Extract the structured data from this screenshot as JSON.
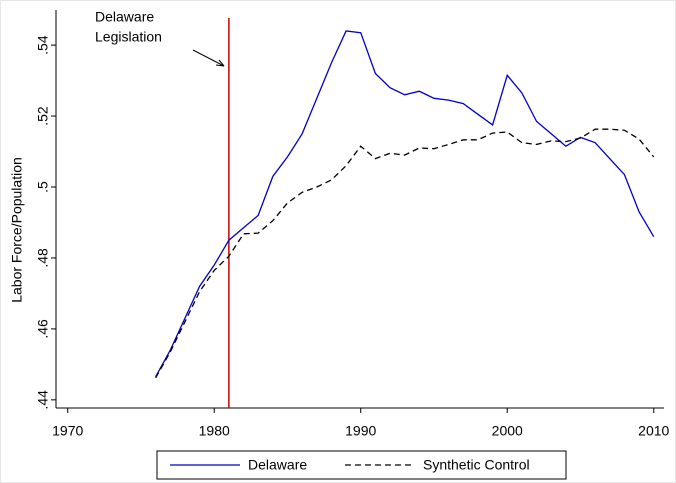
{
  "chart_data": {
    "type": "line",
    "y_label": "Labor Force/Population",
    "x": [
      1976,
      1977,
      1978,
      1979,
      1980,
      1981,
      1982,
      1983,
      1984,
      1985,
      1986,
      1987,
      1988,
      1989,
      1990,
      1991,
      1992,
      1993,
      1994,
      1995,
      1996,
      1997,
      1998,
      1999,
      2000,
      2001,
      2002,
      2003,
      2004,
      2005,
      2006,
      2007,
      2008,
      2009,
      2010
    ],
    "series": [
      {
        "name": "Delaware",
        "color": "#0000cc",
        "dash": "solid",
        "values": [
          0.4465,
          0.454,
          0.463,
          0.472,
          0.478,
          0.485,
          0.4885,
          0.492,
          0.503,
          0.5085,
          0.515,
          0.525,
          0.535,
          0.544,
          0.5435,
          0.532,
          0.528,
          0.526,
          0.527,
          0.525,
          0.5245,
          0.5235,
          0.5205,
          0.5175,
          0.5315,
          0.5265,
          0.5185,
          0.515,
          0.5115,
          0.514,
          0.5125,
          0.508,
          0.5035,
          0.493,
          0.486
        ]
      },
      {
        "name": "Synthetic Control",
        "color": "#000000",
        "dash": "dashed",
        "values": [
          0.4462,
          0.4535,
          0.462,
          0.4705,
          0.4765,
          0.4805,
          0.4868,
          0.487,
          0.4905,
          0.4955,
          0.4985,
          0.5,
          0.502,
          0.506,
          0.5115,
          0.508,
          0.5095,
          0.509,
          0.511,
          0.5108,
          0.512,
          0.5133,
          0.5133,
          0.5152,
          0.5155,
          0.5125,
          0.512,
          0.513,
          0.5128,
          0.5138,
          0.5163,
          0.5163,
          0.516,
          0.5135,
          0.5085
        ]
      }
    ],
    "xlim": [
      1969.2,
      2010.7
    ],
    "xticks": [
      1970,
      1980,
      1990,
      2000,
      2010
    ],
    "ylim": [
      0.4377,
      0.5499
    ],
    "yticks": [
      {
        "value": 0.44,
        "label": ".44"
      },
      {
        "value": 0.46,
        "label": ".46"
      },
      {
        "value": 0.48,
        "label": ".48"
      },
      {
        "value": 0.5,
        "label": ".5"
      },
      {
        "value": 0.52,
        "label": ".52"
      },
      {
        "value": 0.54,
        "label": ".54"
      }
    ],
    "vline": 1981,
    "vline_color": "#cc0000",
    "annotation": [
      "Delaware",
      "Legislation"
    ],
    "legend": "bottom"
  }
}
